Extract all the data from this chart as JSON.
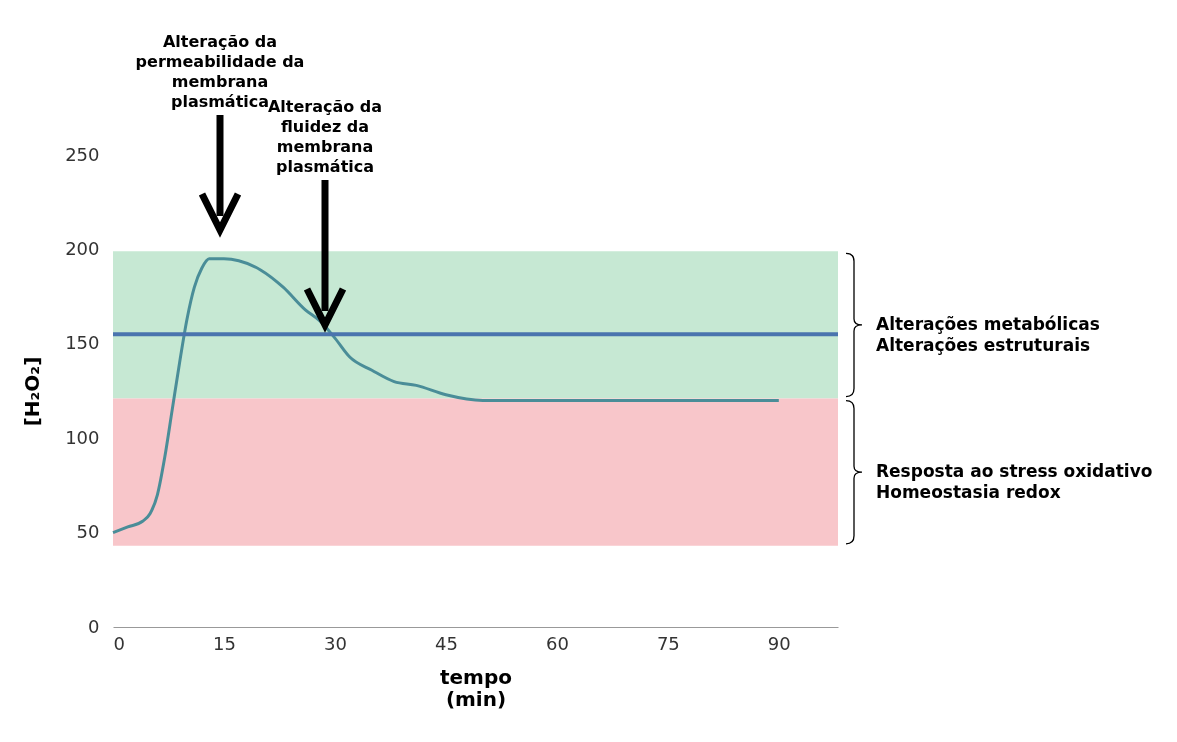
{
  "chart_data": {
    "type": "line",
    "xlabel": "tempo (min)",
    "ylabel": "[H₂O₂]",
    "x": [
      0,
      2,
      4,
      5,
      6,
      7,
      8,
      9,
      10,
      11,
      12,
      13,
      15,
      17,
      20,
      23,
      26,
      28,
      30,
      32,
      35,
      38,
      41,
      45,
      50,
      55,
      90
    ],
    "series": [
      {
        "color": "#4a8d98",
        "values": [
          50,
          53,
          56,
          60,
          70,
          90,
          115,
          140,
          163,
          180,
          190,
          195,
          195,
          194,
          189,
          180,
          168,
          162,
          153,
          143,
          136,
          130,
          128,
          123,
          120,
          120,
          120
        ]
      }
    ],
    "xlim": [
      0,
      98
    ],
    "ylim": [
      0,
      250
    ],
    "xticks": [
      0,
      15,
      30,
      45,
      60,
      75,
      90
    ],
    "yticks": [
      0,
      50,
      100,
      150,
      200,
      250
    ],
    "grid": false,
    "ref_lines": [
      {
        "axis": "y",
        "value": 155,
        "color": "#4a74ae"
      }
    ],
    "bands": [
      {
        "axis": "y",
        "from": 121,
        "to": 199,
        "color": "#c6e8d3",
        "label": "Alterações metabólicas\nAlterações estruturais"
      },
      {
        "axis": "y",
        "from": 43,
        "to": 121,
        "color": "#f8c6ca",
        "label": "Resposta ao stress oxidativo\nHomeostasia redox"
      }
    ],
    "annotations": [
      "Alteração da permeabilidade da membrana plasmática",
      "Alteração da fluidez da membrana plasmática"
    ]
  }
}
